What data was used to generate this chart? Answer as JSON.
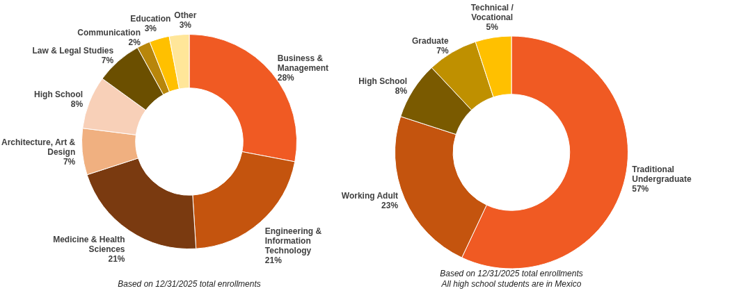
{
  "chart_data": [
    {
      "type": "donut",
      "categories": [
        "Business & Management",
        "Engineering & Information Technology",
        "Medicine & Health Sciences",
        "Architecture, Art & Design",
        "High School",
        "Law & Legal Studies",
        "Communication",
        "Education",
        "Other"
      ],
      "values": [
        28,
        21,
        21,
        7,
        8,
        7,
        2,
        3,
        3
      ],
      "value_labels": [
        "28%",
        "21%",
        "21%",
        "7%",
        "8%",
        "7%",
        "2%",
        "3%",
        "3%"
      ],
      "colors": [
        "#f05a23",
        "#c4540e",
        "#7a3a10",
        "#f0b080",
        "#f8d0b8",
        "#6b4f00",
        "#b8860b",
        "#ffc000",
        "#ffe699"
      ],
      "legend": false,
      "annotations": [
        "Based on 12/31/2025 total enrollments"
      ]
    },
    {
      "type": "donut",
      "categories": [
        "Traditional Undergraduate",
        "Working Adult",
        "High School",
        "Graduate",
        "Technical / Vocational"
      ],
      "values": [
        57,
        23,
        8,
        7,
        5
      ],
      "value_labels": [
        "57%",
        "23%",
        "8%",
        "7%",
        "5%"
      ],
      "colors": [
        "#f05a23",
        "#c4540e",
        "#7a5a00",
        "#bf9000",
        "#ffc000"
      ],
      "legend": false,
      "annotations": [
        "Based on 12/31/2025 total enrollments",
        "All high school students are in Mexico"
      ]
    }
  ]
}
